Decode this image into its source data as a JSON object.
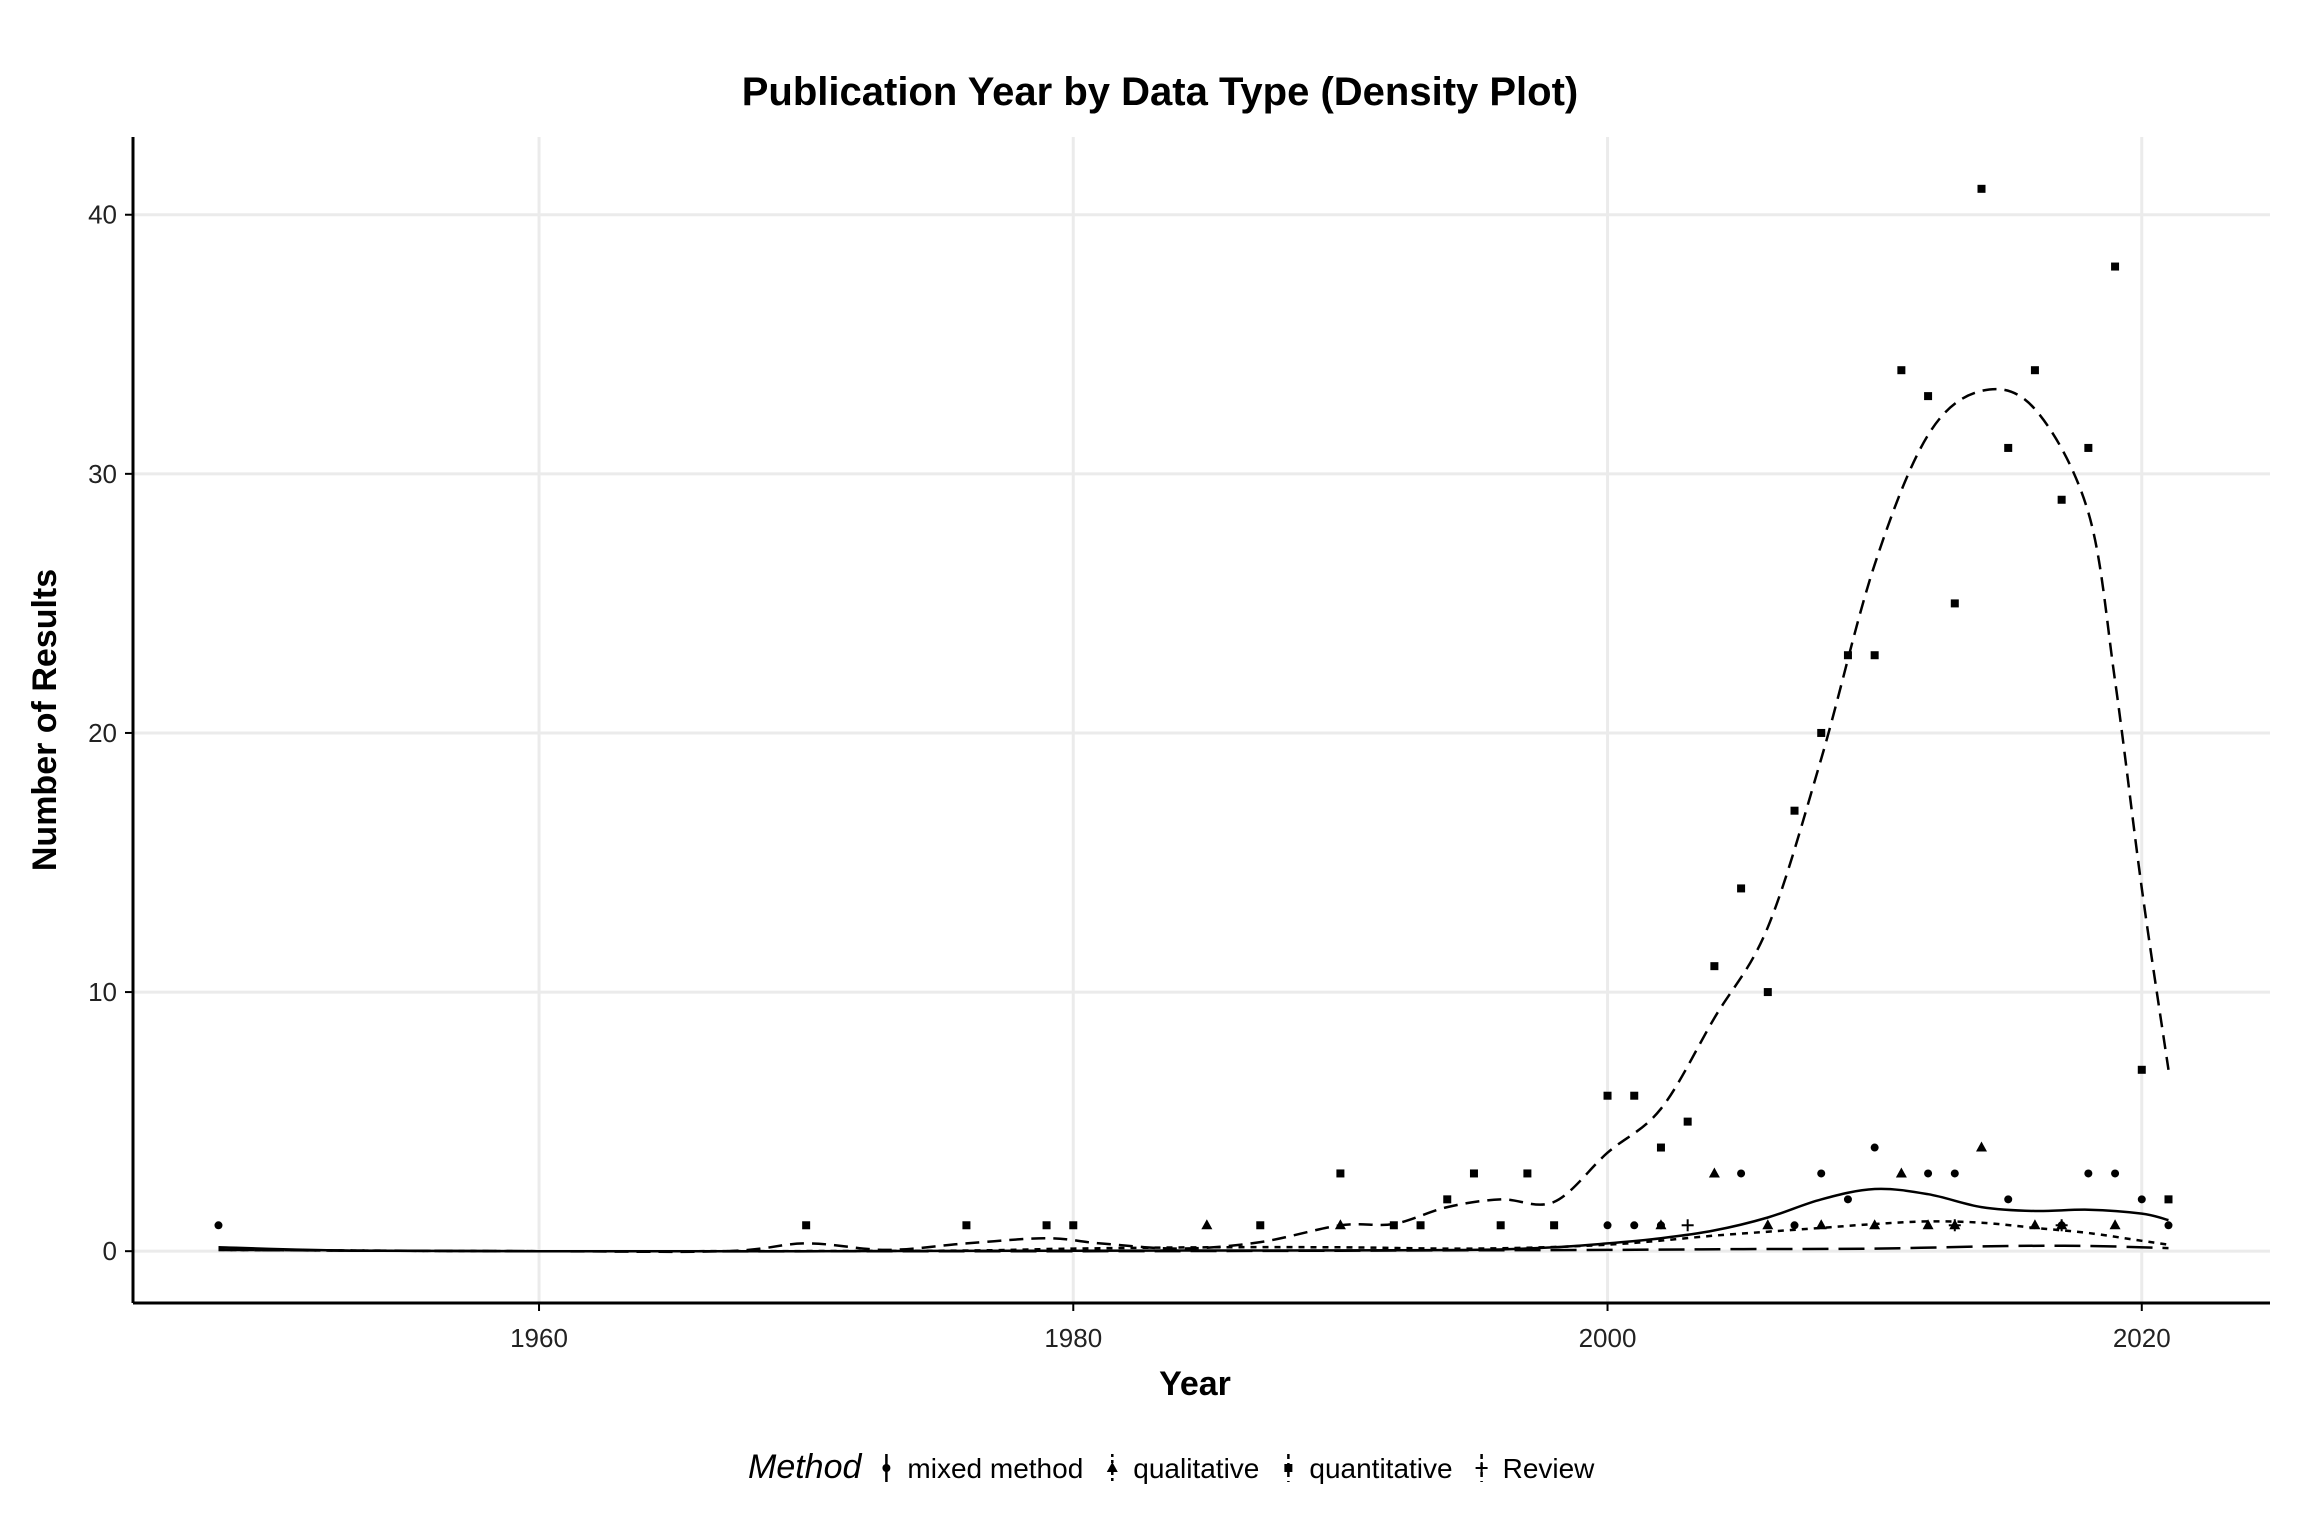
{
  "chart_data": {
    "type": "scatter",
    "title": "Publication Year by Data Type (Density Plot)",
    "xlabel": "Year",
    "ylabel": "Number of Results",
    "xlim": [
      1944.8,
      2024.8
    ],
    "ylim": [
      -2.0,
      43.0
    ],
    "x_ticks": [
      1960,
      1980,
      2000,
      2020
    ],
    "y_ticks": [
      0,
      10,
      20,
      30,
      40
    ],
    "grid": true,
    "legend": {
      "title": "Method",
      "position": "bottom"
    },
    "series": [
      {
        "name": "mixed method",
        "marker": "circle",
        "linestyle": "solid",
        "points": [
          [
            1948,
            1
          ],
          [
            2000,
            1
          ],
          [
            2001,
            1
          ],
          [
            2002,
            1
          ],
          [
            2005,
            3
          ],
          [
            2007,
            1
          ],
          [
            2008,
            3
          ],
          [
            2009,
            2
          ],
          [
            2010,
            4
          ],
          [
            2012,
            3
          ],
          [
            2013,
            3
          ],
          [
            2015,
            2
          ],
          [
            2017,
            1
          ],
          [
            2018,
            3
          ],
          [
            2019,
            3
          ],
          [
            2020,
            2
          ],
          [
            2021,
            1
          ]
        ],
        "smooth": [
          [
            1948,
            0.15
          ],
          [
            1953,
            0.02
          ],
          [
            1960,
            0.0
          ],
          [
            1970,
            0.0
          ],
          [
            1980,
            0.02
          ],
          [
            1990,
            0.03
          ],
          [
            1995,
            0.05
          ],
          [
            1998,
            0.15
          ],
          [
            2000,
            0.3
          ],
          [
            2002,
            0.5
          ],
          [
            2004,
            0.8
          ],
          [
            2006,
            1.3
          ],
          [
            2008,
            2.0
          ],
          [
            2010,
            2.4
          ],
          [
            2012,
            2.2
          ],
          [
            2014,
            1.7
          ],
          [
            2016,
            1.55
          ],
          [
            2018,
            1.6
          ],
          [
            2020,
            1.45
          ],
          [
            2021,
            1.2
          ]
        ]
      },
      {
        "name": "qualitative",
        "marker": "triangle",
        "linestyle": "dotted",
        "points": [
          [
            1985,
            1
          ],
          [
            1990,
            1
          ],
          [
            2002,
            1
          ],
          [
            2004,
            3
          ],
          [
            2006,
            1
          ],
          [
            2008,
            1
          ],
          [
            2010,
            1
          ],
          [
            2011,
            3
          ],
          [
            2012,
            1
          ],
          [
            2013,
            1
          ],
          [
            2014,
            4
          ],
          [
            2016,
            1
          ],
          [
            2017,
            1
          ],
          [
            2019,
            1
          ]
        ],
        "smooth": [
          [
            1948,
            0.05
          ],
          [
            1960,
            0.0
          ],
          [
            1975,
            0.02
          ],
          [
            1980,
            0.1
          ],
          [
            1985,
            0.15
          ],
          [
            1990,
            0.15
          ],
          [
            1995,
            0.1
          ],
          [
            2000,
            0.25
          ],
          [
            2004,
            0.6
          ],
          [
            2006,
            0.75
          ],
          [
            2008,
            0.9
          ],
          [
            2010,
            1.05
          ],
          [
            2012,
            1.15
          ],
          [
            2014,
            1.1
          ],
          [
            2016,
            0.9
          ],
          [
            2018,
            0.7
          ],
          [
            2020,
            0.4
          ],
          [
            2021,
            0.25
          ]
        ]
      },
      {
        "name": "quantitative",
        "marker": "square",
        "linestyle": "dashed",
        "points": [
          [
            1970,
            1
          ],
          [
            1976,
            1
          ],
          [
            1979,
            1
          ],
          [
            1980,
            1
          ],
          [
            1987,
            1
          ],
          [
            1990,
            3
          ],
          [
            1992,
            1
          ],
          [
            1993,
            1
          ],
          [
            1994,
            2
          ],
          [
            1995,
            3
          ],
          [
            1996,
            1
          ],
          [
            1997,
            3
          ],
          [
            1998,
            1
          ],
          [
            2000,
            6
          ],
          [
            2001,
            6
          ],
          [
            2002,
            4
          ],
          [
            2003,
            5
          ],
          [
            2004,
            11
          ],
          [
            2005,
            14
          ],
          [
            2006,
            10
          ],
          [
            2007,
            17
          ],
          [
            2008,
            20
          ],
          [
            2009,
            23
          ],
          [
            2010,
            23
          ],
          [
            2011,
            34
          ],
          [
            2012,
            33
          ],
          [
            2013,
            25
          ],
          [
            2014,
            41
          ],
          [
            2015,
            31
          ],
          [
            2016,
            34
          ],
          [
            2017,
            29
          ],
          [
            2018,
            31
          ],
          [
            2019,
            38
          ],
          [
            2020,
            7
          ],
          [
            2021,
            2
          ]
        ],
        "smooth": [
          [
            1948,
            0.05
          ],
          [
            1960,
            0.0
          ],
          [
            1967,
            0.0
          ],
          [
            1970,
            0.3
          ],
          [
            1973,
            0.05
          ],
          [
            1976,
            0.3
          ],
          [
            1979,
            0.5
          ],
          [
            1981,
            0.3
          ],
          [
            1984,
            0.1
          ],
          [
            1987,
            0.35
          ],
          [
            1990,
            1.0
          ],
          [
            1992,
            1.05
          ],
          [
            1994,
            1.7
          ],
          [
            1996,
            2.0
          ],
          [
            1998,
            1.9
          ],
          [
            2000,
            3.8
          ],
          [
            2002,
            5.5
          ],
          [
            2004,
            9.0
          ],
          [
            2006,
            12.5
          ],
          [
            2008,
            19.0
          ],
          [
            2010,
            26.5
          ],
          [
            2012,
            31.5
          ],
          [
            2014,
            33.2
          ],
          [
            2016,
            32.5
          ],
          [
            2018,
            28.5
          ],
          [
            2019,
            22.0
          ],
          [
            2020,
            14.0
          ],
          [
            2021,
            7.0
          ]
        ]
      },
      {
        "name": "Review",
        "marker": "plus",
        "linestyle": "longdash",
        "points": [
          [
            2003,
            1
          ],
          [
            2013,
            1
          ],
          [
            2017,
            1
          ]
        ],
        "smooth": [
          [
            1948,
            0.05
          ],
          [
            1960,
            0.0
          ],
          [
            1980,
            0.0
          ],
          [
            1990,
            0.02
          ],
          [
            2000,
            0.05
          ],
          [
            2005,
            0.08
          ],
          [
            2010,
            0.1
          ],
          [
            2015,
            0.2
          ],
          [
            2018,
            0.2
          ],
          [
            2021,
            0.12
          ]
        ]
      }
    ]
  }
}
